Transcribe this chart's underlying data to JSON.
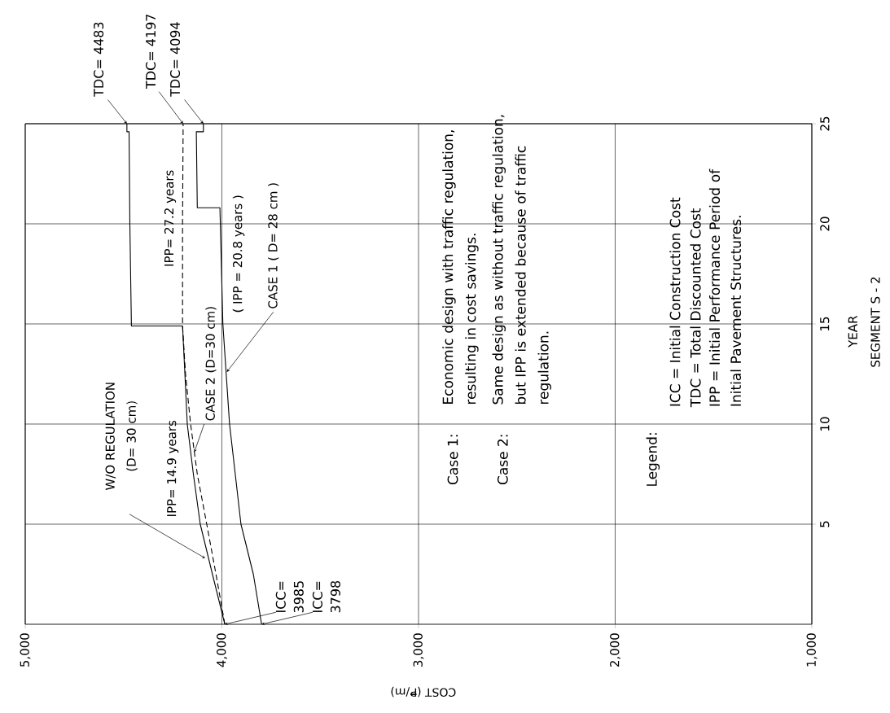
{
  "chart_data": {
    "type": "line",
    "xlabel": "COST (₱/m)",
    "ylabel": "YEAR",
    "xlim": [
      5000,
      1000
    ],
    "xticks": [
      {
        "value": 5000,
        "label": "5,000"
      },
      {
        "value": 4000,
        "label": "4,000"
      },
      {
        "value": 3000,
        "label": "3,000"
      },
      {
        "value": 2000,
        "label": "2,000"
      },
      {
        "value": 1000,
        "label": "1,000"
      }
    ],
    "ylim": [
      0,
      25
    ],
    "yticks": [
      5,
      10,
      15,
      20,
      25
    ],
    "grid": true,
    "marker": "none",
    "series": [
      {
        "color": "#000000",
        "line_style": "solid",
        "x": [
          3985,
          4048,
          4110,
          4145,
          4176,
          4188,
          4200,
          4460,
          4468,
          4472,
          4483,
          4483
        ],
        "values": [
          0,
          2.5,
          5,
          7.5,
          10,
          12.5,
          14.9,
          14.9,
          20,
          24.6,
          24.6,
          25
        ]
      },
      {
        "name": "CASE 2 (D=30 cm)",
        "color": "#000000",
        "line_style": "dashed",
        "x": [
          3985,
          4030,
          4077,
          4125,
          4159,
          4185,
          4200,
          4200,
          4197
        ],
        "values": [
          0,
          2.5,
          5,
          7.5,
          10,
          12.5,
          14.9,
          20,
          25
        ]
      },
      {
        "name": "CASE 1 ( D= 28 cm )",
        "color": "#000000",
        "line_style": "solid",
        "x": [
          3798,
          3840,
          3903,
          3932,
          3961,
          3978,
          3995,
          4010,
          4125,
          4130,
          4094,
          4094
        ],
        "values": [
          0,
          2.5,
          5,
          7.5,
          10,
          12.5,
          15,
          20.8,
          20.8,
          24.6,
          24.6,
          25
        ]
      }
    ],
    "annotations": [
      {
        "text": "TDC= 4483",
        "x": 4483,
        "y": 25
      },
      {
        "text": "TDC= 4197",
        "x": 4197,
        "y": 25
      },
      {
        "text": "TDC= 4094",
        "x": 4094,
        "y": 25
      },
      {
        "text": "ICC= 3985",
        "x": 3985,
        "y": 0
      },
      {
        "text": "ICC= 3798",
        "x": 3798,
        "y": 0
      },
      "IPP= 27.2 years",
      "( IPP = 20.8 years )",
      "IPP= 14.9 years",
      "Case 1:",
      "Economic design with traffic regulation, resulting in cost savings.",
      "Case 2:",
      "Same design as without traffic regulation, but IPP is extended because of traffic regulation.",
      "Legend:",
      "ICC = Initial Construction Cost",
      "TDC = Total Discounted Cost",
      "IPP = Initial Performance Period of Initial Pavement Structures.",
      "SEGMENT S - 2",
      "W/O REGULATION (D= 30 cm)"
    ]
  }
}
